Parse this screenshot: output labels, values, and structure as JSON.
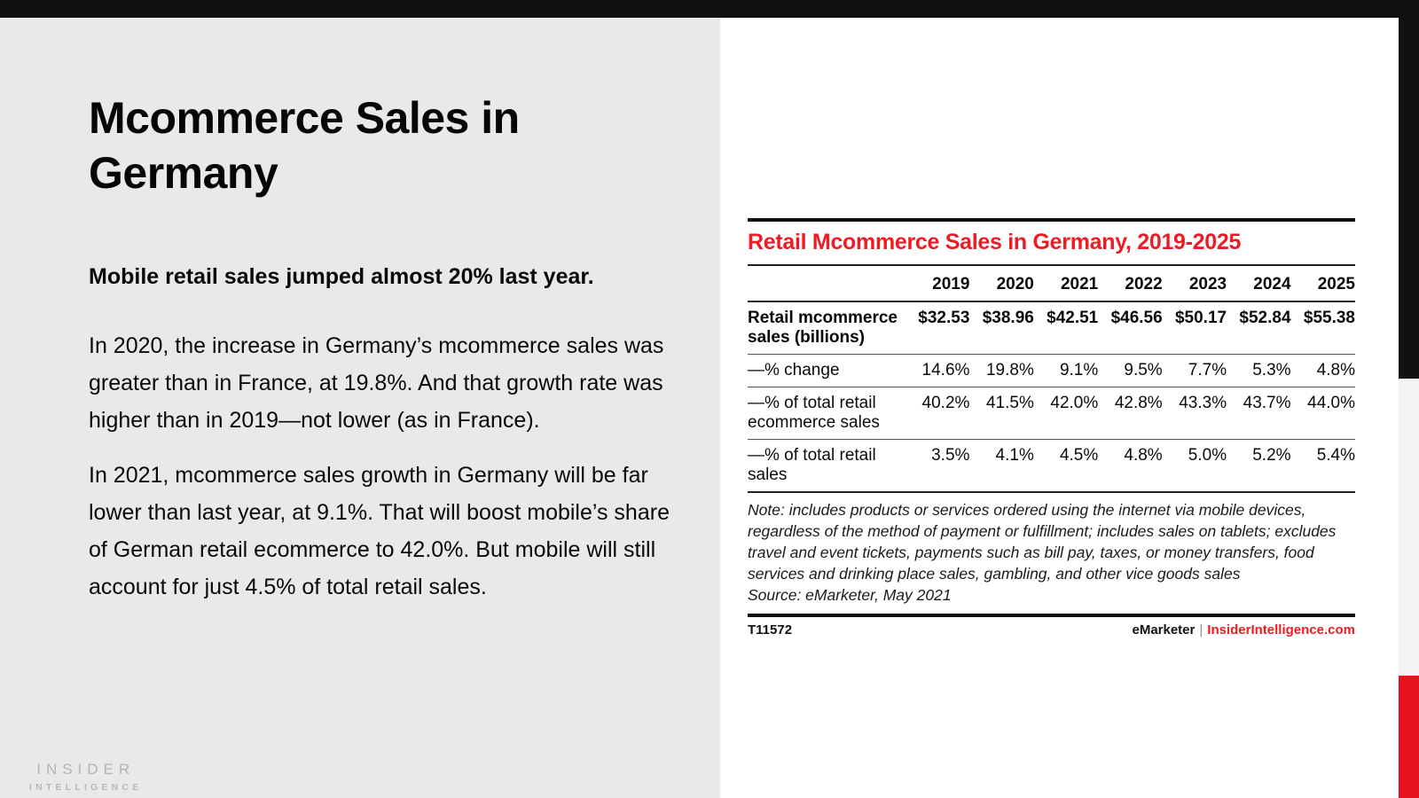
{
  "slide": {
    "title": "Mcommerce Sales in Germany",
    "lede": "Mobile retail sales jumped almost 20% last year.",
    "paragraphs": [
      "In 2020, the increase in Germany’s mcommerce sales was greater than in France, at 19.8%. And that growth rate was higher than in 2019—not lower (as in France).",
      "In 2021, mcommerce sales growth in Germany will be far lower than last year, at 9.1%. That will boost mobile’s share of German retail ecommerce to 42.0%. But mobile will still account for just 4.5% of total retail sales."
    ],
    "logo_line1": "INSIDER",
    "logo_line2": "INTELLIGENCE"
  },
  "chart": {
    "title": "Retail Mcommerce Sales in Germany, 2019-2025",
    "note": "Note: includes products or services ordered using the internet via mobile devices, regardless of the method of payment or fulfillment; includes sales on tablets; excludes travel and event tickets, payments such as bill pay, taxes, or money transfers, food services and drinking place sales, gambling, and other vice goods sales",
    "source": "Source: eMarketer, May 2021",
    "id": "T11572",
    "footer_brand": "eMarketer",
    "footer_divider": "|",
    "footer_site": "InsiderIntelligence.com"
  },
  "chart_data": {
    "type": "table",
    "title": "Retail Mcommerce Sales in Germany, 2019-2025",
    "categories": [
      "2019",
      "2020",
      "2021",
      "2022",
      "2023",
      "2024",
      "2025"
    ],
    "series": [
      {
        "name": "Retail mcommerce sales (billions)",
        "values": [
          "$32.53",
          "$38.96",
          "$42.51",
          "$46.56",
          "$50.17",
          "$52.84",
          "$55.38"
        ]
      },
      {
        "name": "—% change",
        "values": [
          "14.6%",
          "19.8%",
          "9.1%",
          "9.5%",
          "7.7%",
          "5.3%",
          "4.8%"
        ]
      },
      {
        "name": "—% of total retail ecommerce sales",
        "values": [
          "40.2%",
          "41.5%",
          "42.0%",
          "42.8%",
          "43.3%",
          "43.7%",
          "44.0%"
        ]
      },
      {
        "name": "—% of total retail sales",
        "values": [
          "3.5%",
          "4.1%",
          "4.5%",
          "4.8%",
          "5.0%",
          "5.2%",
          "5.4%"
        ]
      }
    ]
  },
  "colors": {
    "top_bar_black": "#111111",
    "panel_gray": "#e9e9e9",
    "chart_title_red": "#ed1c24",
    "edge_red": "#e8131c",
    "edge_gray": "#f3f3f3",
    "logo_gray": "#b3b3b3"
  }
}
